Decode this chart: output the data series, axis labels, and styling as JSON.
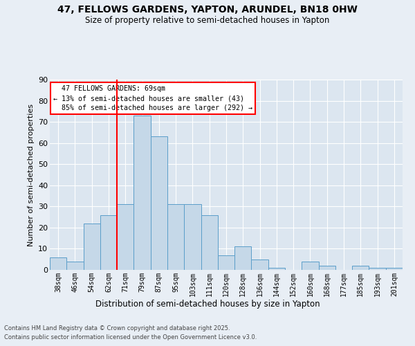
{
  "title": "47, FELLOWS GARDENS, YAPTON, ARUNDEL, BN18 0HW",
  "subtitle": "Size of property relative to semi-detached houses in Yapton",
  "xlabel": "Distribution of semi-detached houses by size in Yapton",
  "ylabel": "Number of semi-detached properties",
  "categories": [
    "38sqm",
    "46sqm",
    "54sqm",
    "62sqm",
    "71sqm",
    "79sqm",
    "87sqm",
    "95sqm",
    "103sqm",
    "111sqm",
    "120sqm",
    "128sqm",
    "136sqm",
    "144sqm",
    "152sqm",
    "160sqm",
    "168sqm",
    "177sqm",
    "185sqm",
    "193sqm",
    "201sqm"
  ],
  "values": [
    6,
    4,
    22,
    26,
    31,
    73,
    63,
    31,
    31,
    26,
    7,
    11,
    5,
    1,
    0,
    4,
    2,
    0,
    2,
    1,
    1
  ],
  "bar_color": "#c5d8e8",
  "bar_edge_color": "#5a9ec9",
  "property_label": "47 FELLOWS GARDENS: 69sqm",
  "pct_smaller": 13,
  "n_smaller": 43,
  "pct_larger": 85,
  "n_larger": 292,
  "vline_bin_index": 4,
  "ylim": [
    0,
    90
  ],
  "yticks": [
    0,
    10,
    20,
    30,
    40,
    50,
    60,
    70,
    80,
    90
  ],
  "background_color": "#e8eef5",
  "plot_bg_color": "#dce6f0",
  "grid_color": "#ffffff",
  "footer_line1": "Contains HM Land Registry data © Crown copyright and database right 2025.",
  "footer_line2": "Contains public sector information licensed under the Open Government Licence v3.0."
}
